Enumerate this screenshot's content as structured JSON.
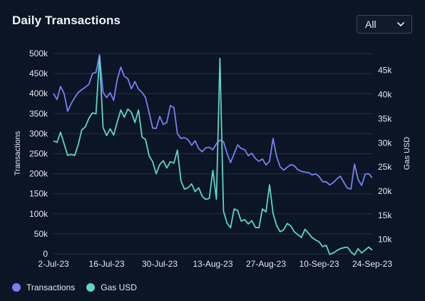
{
  "title": "Daily Transactions",
  "dropdown": {
    "selected": "All"
  },
  "legend": [
    {
      "label": "Transactions",
      "color": "#7680f2"
    },
    {
      "label": "Gas USD",
      "color": "#5fd3c7"
    }
  ],
  "chart_data": {
    "type": "line",
    "x_tick_labels": [
      "2-Jul-23",
      "16-Jul-23",
      "30-Jul-23",
      "13-Aug-23",
      "27-Aug-23",
      "10-Sep-23",
      "24-Sep-23"
    ],
    "y_left": {
      "label": "Transactions",
      "ticks": [
        "0",
        "50k",
        "100k",
        "150k",
        "200k",
        "250k",
        "300k",
        "350k",
        "400k",
        "450k",
        "500k"
      ],
      "range": [
        0,
        500000
      ]
    },
    "y_right": {
      "label": "Gas USD",
      "ticks": [
        "10k",
        "15k",
        "20k",
        "25k",
        "30k",
        "35k",
        "40k",
        "45k"
      ],
      "range": [
        7000,
        48500
      ]
    },
    "x_range": [
      0,
      90
    ],
    "series": [
      {
        "name": "Transactions",
        "axis": "left",
        "color": "#7680f2",
        "x": [
          0,
          1,
          2,
          3,
          4,
          5,
          6,
          7,
          8,
          9,
          10,
          11,
          12,
          13,
          14,
          15,
          16,
          17,
          18,
          19,
          20,
          21,
          22,
          23,
          24,
          25,
          26,
          27,
          28,
          29,
          30,
          31,
          32,
          33,
          34,
          35,
          36,
          37,
          38,
          39,
          40,
          41,
          42,
          43,
          44,
          45,
          46,
          47,
          48,
          49,
          50,
          51,
          52,
          53,
          54,
          55,
          56,
          57,
          58,
          59,
          60,
          61,
          62,
          63,
          64,
          65,
          66,
          67,
          68,
          69,
          70,
          71,
          72,
          73,
          74,
          75,
          76,
          77,
          78,
          79,
          80,
          81,
          82,
          83,
          84,
          85,
          86,
          87,
          88,
          89,
          90
        ],
        "values": [
          400000,
          385000,
          418000,
          400000,
          356000,
          375000,
          390000,
          403000,
          410000,
          416000,
          423000,
          450000,
          453000,
          497000,
          403000,
          390000,
          402000,
          383000,
          435000,
          466000,
          443000,
          437000,
          412000,
          430000,
          411000,
          403000,
          390000,
          352000,
          314000,
          313000,
          343000,
          323000,
          328000,
          370000,
          365000,
          300000,
          288000,
          290000,
          285000,
          271000,
          282000,
          263000,
          255000,
          265000,
          266000,
          260000,
          275000,
          284000,
          280000,
          251000,
          228000,
          250000,
          272000,
          263000,
          260000,
          245000,
          251000,
          238000,
          231000,
          237000,
          222000,
          231000,
          288000,
          243000,
          217000,
          209000,
          216000,
          223000,
          220000,
          210000,
          206000,
          204000,
          203000,
          197000,
          200000,
          193000,
          180000,
          180000,
          172000,
          178000,
          187000,
          194000,
          178000,
          164000,
          162000,
          224000,
          186000,
          171000,
          199000,
          200000,
          190000
        ]
      },
      {
        "name": "Gas USD",
        "axis": "right",
        "color": "#5fd3c7",
        "x": [
          0,
          1,
          2,
          3,
          4,
          5,
          6,
          7,
          8,
          9,
          10,
          11,
          12,
          13,
          14,
          15,
          16,
          17,
          18,
          19,
          20,
          21,
          22,
          23,
          24,
          25,
          26,
          27,
          28,
          29,
          30,
          31,
          32,
          33,
          34,
          35,
          36,
          37,
          38,
          39,
          40,
          41,
          42,
          43,
          44,
          45,
          46,
          47,
          48,
          49,
          50,
          51,
          52,
          53,
          54,
          55,
          56,
          57,
          58,
          59,
          60,
          61,
          62,
          63,
          64,
          65,
          66,
          67,
          68,
          69,
          70,
          71,
          72,
          73,
          74,
          75,
          76,
          77,
          78,
          79,
          80,
          81,
          82,
          83,
          84,
          85,
          86,
          87,
          88,
          89,
          90
        ],
        "values": [
          30400,
          30100,
          32200,
          29800,
          27400,
          27600,
          27400,
          29700,
          32700,
          33300,
          35100,
          36200,
          36000,
          47800,
          33200,
          31500,
          32900,
          31600,
          34300,
          36800,
          35300,
          37000,
          36300,
          34200,
          36800,
          31200,
          30700,
          27300,
          26100,
          23600,
          25500,
          26300,
          24800,
          26100,
          25800,
          28500,
          22100,
          20400,
          20700,
          21500,
          19900,
          20700,
          18900,
          18300,
          18500,
          24300,
          18300,
          47500,
          15900,
          13400,
          12400,
          16300,
          16000,
          13800,
          14100,
          13200,
          13900,
          12500,
          12400,
          16300,
          15700,
          21300,
          15400,
          12900,
          11600,
          12000,
          13300,
          12800,
          11600,
          11000,
          10400,
          12100,
          11300,
          10400,
          9900,
          9500,
          8500,
          8800,
          6900,
          7200,
          7700,
          8100,
          8300,
          8400,
          7400,
          6800,
          8100,
          7200,
          7800,
          8400,
          7800
        ]
      }
    ],
    "grid": true,
    "legend_position": "bottom-left"
  },
  "icons": {
    "dropdown": "chevron-down-icon"
  }
}
